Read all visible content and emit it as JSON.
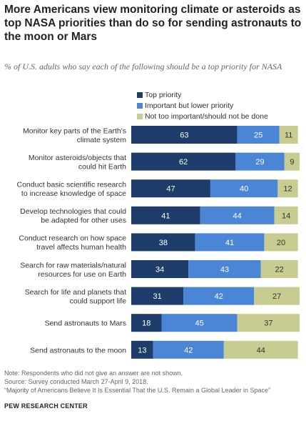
{
  "title": "More Americans view monitoring climate or asteroids as top NASA priorities than do so for sending astronauts to the moon or Mars",
  "subtitle": "% of U.S. adults who say each of the following should be a top priority for NASA",
  "legend": [
    {
      "label": "Top priority",
      "color": "#1f3d6b"
    },
    {
      "label": "Important but lower priority",
      "color": "#4a85d6"
    },
    {
      "label": "Not too important/should not be done",
      "color": "#c9cc91"
    }
  ],
  "chart_data": {
    "type": "bar",
    "orientation": "horizontal",
    "stacked": true,
    "categories": [
      [
        "Monitor key parts of the Earth's",
        "climate system"
      ],
      [
        "Monitor asteroids/objects that",
        "could hit Earth"
      ],
      [
        "Conduct basic scientific research",
        "to increase knowledge of space"
      ],
      [
        "Develop technologies that could",
        "be adapted for other uses"
      ],
      [
        "Conduct  research on how space",
        "travel affects human health"
      ],
      [
        "Search for raw materials/natural",
        "resources for use on Earth"
      ],
      [
        "Search for life and planets that",
        "could support life"
      ],
      [
        "Send astronauts to Mars"
      ],
      [
        "Send astronauts to the moon"
      ]
    ],
    "series": [
      {
        "name": "Top priority",
        "values": [
          63,
          62,
          47,
          41,
          38,
          34,
          31,
          18,
          13
        ],
        "color": "#1f3d6b",
        "label_color": "#ffffff"
      },
      {
        "name": "Important but lower priority",
        "values": [
          25,
          29,
          40,
          44,
          41,
          43,
          42,
          45,
          42
        ],
        "color": "#4a85d6",
        "label_color": "#ffffff"
      },
      {
        "name": "Not too important/should not be done",
        "values": [
          11,
          9,
          12,
          14,
          20,
          22,
          27,
          37,
          44
        ],
        "color": "#c9cc91",
        "label_color": "#333333"
      }
    ],
    "xlim": [
      0,
      100
    ],
    "grid": false,
    "legend_position": "top"
  },
  "notes": [
    "Note: Respondents who did not give an answer are not shown.",
    "Source: Survey conducted March 27-April 9, 2018.",
    "“Majority of Americans Believe It Is Essential That the U.S. Remain a Global Leader in Space”"
  ],
  "brand": "PEW RESEARCH CENTER"
}
